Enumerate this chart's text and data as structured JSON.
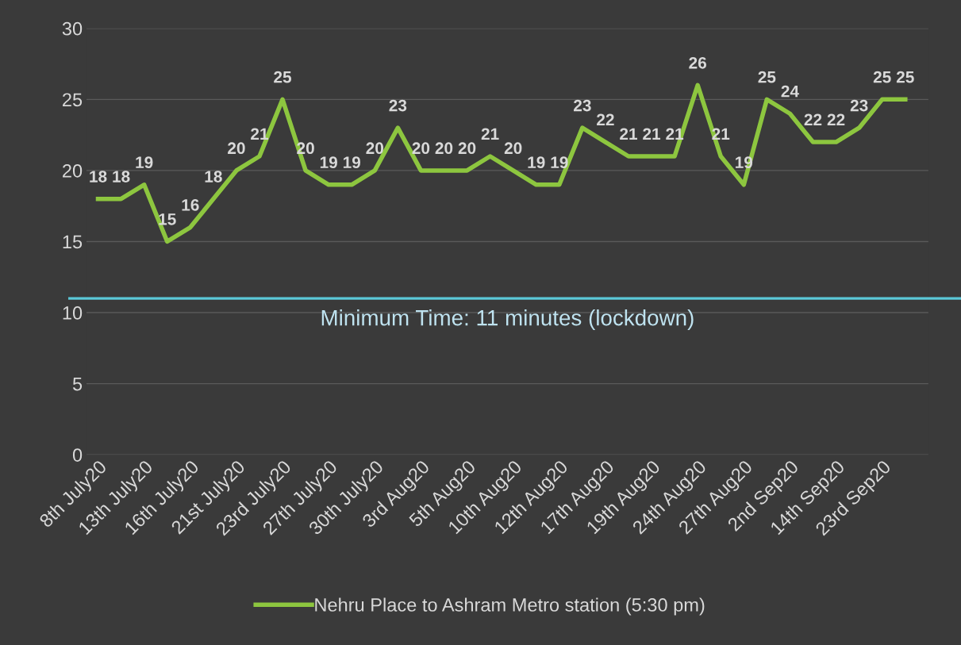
{
  "chart_data": {
    "type": "line",
    "categories": [
      "8th July20",
      null,
      "13th July20",
      null,
      "16th July20",
      null,
      "21st July20",
      null,
      "23rd July20",
      null,
      "27th July20",
      null,
      "30th July20",
      null,
      "3rd Aug20",
      null,
      "5th Aug20",
      null,
      "10th Aug20",
      null,
      "12th Aug20",
      null,
      "17th Aug20",
      null,
      "19th Aug20",
      null,
      "24th Aug20",
      null,
      "27th Aug20",
      null,
      "2nd Sep20",
      null,
      "14th Sep20",
      null,
      "23rd Sep20",
      null
    ],
    "series": [
      {
        "name": "Nehru Place to Ashram Metro station (5:30 pm)",
        "color": "#8dc63f",
        "values": [
          18,
          18,
          19,
          15,
          16,
          18,
          20,
          21,
          25,
          20,
          19,
          19,
          20,
          23,
          20,
          20,
          20,
          21,
          20,
          19,
          19,
          23,
          22,
          21,
          21,
          21,
          26,
          21,
          19,
          25,
          24,
          22,
          22,
          23,
          25,
          25
        ]
      }
    ],
    "ylim": [
      0,
      30
    ],
    "yticks": [
      0,
      5,
      10,
      15,
      20,
      25,
      30
    ],
    "grid": "y",
    "legend": "bottom",
    "data_labels": true,
    "marker": "none",
    "line_style": "solid",
    "ref_lines": [
      {
        "axis": "y",
        "value": 11,
        "label": "Minimum Time: 11 minutes (lockdown)",
        "color": "#5bc8d8"
      }
    ]
  }
}
